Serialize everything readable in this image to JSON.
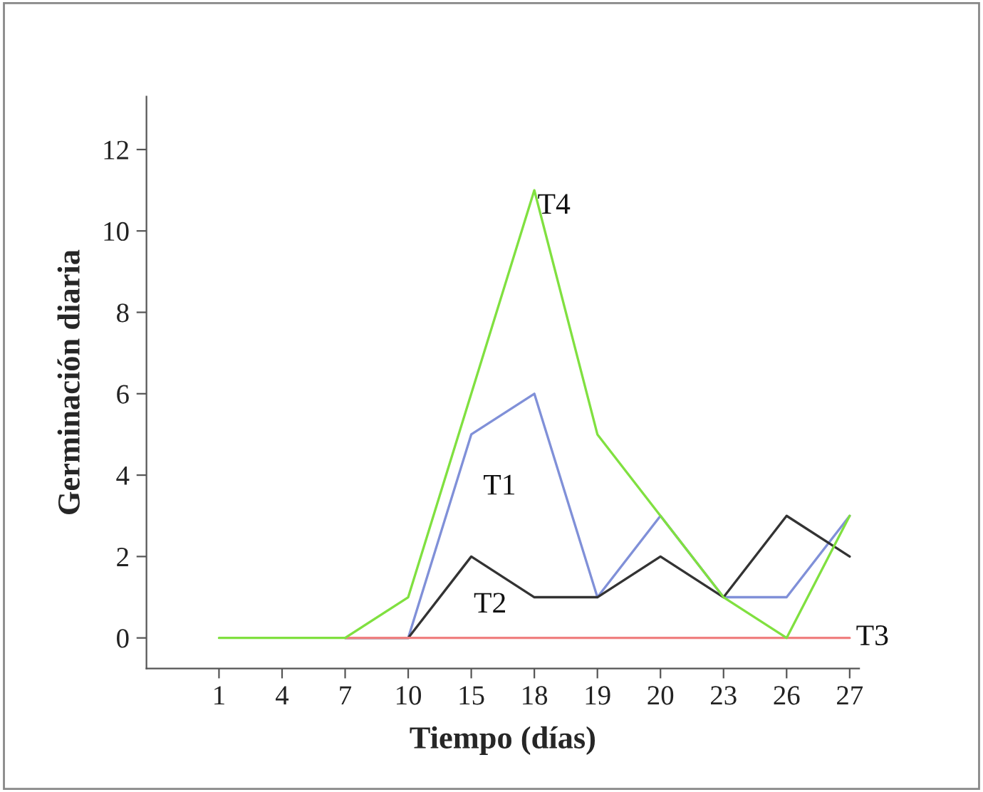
{
  "chart_data": {
    "type": "line",
    "xlabel": "Tiempo (días)",
    "ylabel": "Germinación diaria",
    "categories": [
      "1",
      "4",
      "7",
      "10",
      "15",
      "18",
      "19",
      "20",
      "23",
      "26",
      "27"
    ],
    "series": [
      {
        "name": "T1",
        "color": "#8090d8",
        "values": [
          null,
          null,
          0,
          0,
          5,
          6,
          1,
          3,
          1,
          1,
          3
        ]
      },
      {
        "name": "T2",
        "color": "#333333",
        "values": [
          null,
          null,
          0,
          0,
          2,
          1,
          1,
          2,
          1,
          3,
          2
        ]
      },
      {
        "name": "T3",
        "color": "#f08080",
        "values": [
          null,
          null,
          0,
          0,
          0,
          0,
          0,
          0,
          0,
          0,
          0
        ]
      },
      {
        "name": "T4",
        "color": "#80e040",
        "values": [
          0,
          0,
          0,
          1,
          6,
          11,
          5,
          3,
          1,
          0,
          3
        ]
      }
    ],
    "ylim": [
      -0.75,
      13.3
    ],
    "yticks": [
      0,
      2,
      4,
      6,
      8,
      10,
      12
    ],
    "grid": false,
    "legend": false
  }
}
